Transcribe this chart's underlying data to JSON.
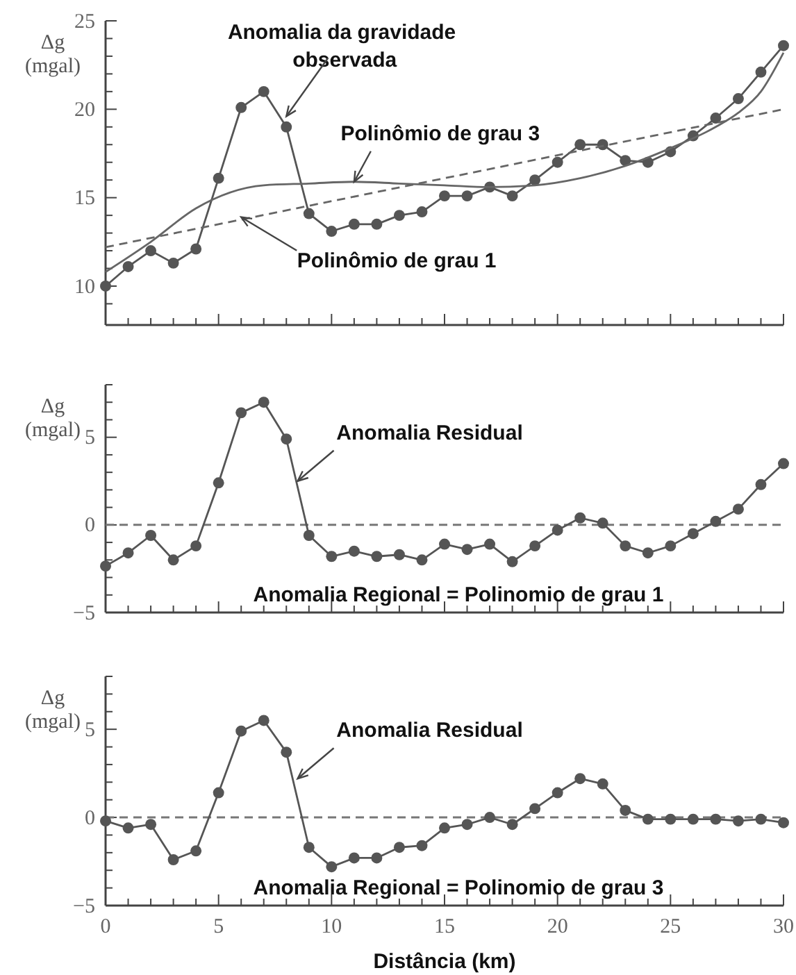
{
  "chart_data": [
    {
      "type": "line",
      "ylabel": "Δg (mgal)",
      "tick_labels": "y",
      "marker": "circle",
      "x": [
        0,
        1,
        2,
        3,
        4,
        5,
        6,
        7,
        8,
        9,
        10,
        11,
        12,
        13,
        14,
        15,
        16,
        17,
        18,
        19,
        20,
        21,
        22,
        23,
        24,
        25,
        26,
        27,
        28,
        29,
        30
      ],
      "xlim": [
        0,
        30
      ],
      "xticks": [
        0,
        {
          "value": 1,
          "label": null
        },
        {
          "value": 2,
          "label": null
        },
        {
          "value": 3,
          "label": null
        },
        {
          "value": 4,
          "label": null
        },
        5,
        {
          "value": 6,
          "label": null
        },
        {
          "value": 7,
          "label": null
        },
        {
          "value": 8,
          "label": null
        },
        {
          "value": 9,
          "label": null
        },
        10,
        {
          "value": 11,
          "label": null
        },
        {
          "value": 12,
          "label": null
        },
        {
          "value": 13,
          "label": null
        },
        {
          "value": 14,
          "label": null
        },
        15,
        {
          "value": 16,
          "label": null
        },
        {
          "value": 17,
          "label": null
        },
        {
          "value": 18,
          "label": null
        },
        {
          "value": 19,
          "label": null
        },
        20,
        {
          "value": 21,
          "label": null
        },
        {
          "value": 22,
          "label": null
        },
        {
          "value": 23,
          "label": null
        },
        {
          "value": 24,
          "label": null
        },
        25,
        {
          "value": 26,
          "label": null
        },
        {
          "value": 27,
          "label": null
        },
        {
          "value": 28,
          "label": null
        },
        {
          "value": 29,
          "label": null
        },
        30
      ],
      "ylim": [
        7.8,
        25
      ],
      "yticks": [
        {
          "value": 9,
          "label": null
        },
        10,
        {
          "value": 11,
          "label": null
        },
        {
          "value": 12,
          "label": null
        },
        {
          "value": 13,
          "label": null
        },
        {
          "value": 14,
          "label": null
        },
        15,
        {
          "value": 16,
          "label": null
        },
        {
          "value": 17,
          "label": null
        },
        {
          "value": 18,
          "label": null
        },
        {
          "value": 19,
          "label": null
        },
        20,
        {
          "value": 21,
          "label": null
        },
        {
          "value": 22,
          "label": null
        },
        {
          "value": 23,
          "label": null
        },
        {
          "value": 24,
          "label": null
        },
        25
      ],
      "series": [
        {
          "color": "#555555",
          "line_style": "solid",
          "values": [
            10.0,
            11.1,
            12.0,
            11.3,
            12.1,
            16.1,
            20.1,
            21.0,
            19.0,
            14.1,
            13.1,
            13.5,
            13.5,
            14.0,
            14.2,
            15.1,
            15.1,
            15.6,
            15.1,
            16.0,
            17.0,
            18.0,
            18.0,
            17.1,
            17.0,
            17.6,
            18.5,
            19.5,
            20.6,
            22.1,
            23.6
          ]
        },
        {
          "color": "#666666",
          "marker": "none",
          "line_style": "solid",
          "x": [
            0,
            2,
            4,
            7,
            9,
            11,
            13,
            15,
            17,
            19,
            21,
            23,
            25,
            27,
            28,
            29,
            30
          ],
          "values": [
            10.8,
            12.5,
            14.4,
            15.7,
            15.8,
            15.9,
            15.8,
            15.7,
            15.6,
            15.7,
            16.1,
            16.8,
            17.8,
            19.0,
            19.8,
            21.0,
            23.2
          ]
        },
        {
          "color": "#666666",
          "marker": "none",
          "line_style": "dashed",
          "x": [
            0,
            30
          ],
          "values": [
            12.2,
            20.0
          ]
        }
      ],
      "annotations": [
        {
          "text": "Anomalia da gravidade observada",
          "x": 8,
          "y": 19.6
        },
        {
          "text": "Polinômio de grau 3",
          "x": 11,
          "y": 15.9
        },
        {
          "text": "Polinômio de grau 1",
          "x": 6,
          "y": 13.9
        }
      ]
    },
    {
      "type": "line",
      "ylabel": "Δg (mgal)",
      "tick_labels": "y",
      "marker": "circle",
      "x": [
        0,
        1,
        2,
        3,
        4,
        5,
        6,
        7,
        8,
        9,
        10,
        11,
        12,
        13,
        14,
        15,
        16,
        17,
        18,
        19,
        20,
        21,
        22,
        23,
        24,
        25,
        26,
        27,
        28,
        29,
        30
      ],
      "xlim": [
        0,
        30
      ],
      "xticks": [
        0,
        {
          "value": 1,
          "label": null
        },
        {
          "value": 2,
          "label": null
        },
        {
          "value": 3,
          "label": null
        },
        {
          "value": 4,
          "label": null
        },
        5,
        {
          "value": 6,
          "label": null
        },
        {
          "value": 7,
          "label": null
        },
        {
          "value": 8,
          "label": null
        },
        {
          "value": 9,
          "label": null
        },
        10,
        {
          "value": 11,
          "label": null
        },
        {
          "value": 12,
          "label": null
        },
        {
          "value": 13,
          "label": null
        },
        {
          "value": 14,
          "label": null
        },
        15,
        {
          "value": 16,
          "label": null
        },
        {
          "value": 17,
          "label": null
        },
        {
          "value": 18,
          "label": null
        },
        {
          "value": 19,
          "label": null
        },
        20,
        {
          "value": 21,
          "label": null
        },
        {
          "value": 22,
          "label": null
        },
        {
          "value": 23,
          "label": null
        },
        {
          "value": 24,
          "label": null
        },
        25,
        {
          "value": 26,
          "label": null
        },
        {
          "value": 27,
          "label": null
        },
        {
          "value": 28,
          "label": null
        },
        {
          "value": 29,
          "label": null
        },
        30
      ],
      "ylim": [
        -5,
        8
      ],
      "yticks": [
        {
          "value": -5,
          "label": "−5"
        },
        {
          "value": -4,
          "label": null
        },
        {
          "value": -3,
          "label": null
        },
        {
          "value": -2,
          "label": null
        },
        {
          "value": -1,
          "label": null
        },
        0,
        {
          "value": 1,
          "label": null
        },
        {
          "value": 2,
          "label": null
        },
        {
          "value": 3,
          "label": null
        },
        {
          "value": 4,
          "label": null
        },
        5,
        {
          "value": 6,
          "label": null
        },
        {
          "value": 7,
          "label": null
        },
        {
          "value": 8,
          "label": null
        }
      ],
      "series": [
        {
          "color": "#555555",
          "values": [
            -2.35,
            -1.6,
            -0.6,
            -2.0,
            -1.2,
            2.4,
            6.4,
            7.0,
            4.9,
            -0.6,
            -1.8,
            -1.5,
            -1.8,
            -1.7,
            -2.0,
            -1.1,
            -1.4,
            -1.1,
            -2.1,
            -1.2,
            -0.3,
            0.4,
            0.1,
            -1.2,
            -1.6,
            -1.2,
            -0.5,
            0.2,
            0.9,
            2.3,
            3.5
          ]
        }
      ],
      "ref_lines": [
        {
          "axis": "y",
          "value": 0,
          "label": "Anomalia Regional = Polinomio de grau 1",
          "color": "#777777",
          "line_style": "dashed"
        }
      ],
      "annotations": [
        {
          "text": "Anomalia Residual",
          "x": 8.5,
          "y": 2.5
        }
      ]
    },
    {
      "type": "line",
      "ylabel": "Δg (mgal)",
      "xlabel": "Distância (km)",
      "marker": "circle",
      "x": [
        0,
        1,
        2,
        3,
        4,
        5,
        6,
        7,
        8,
        9,
        10,
        11,
        12,
        13,
        14,
        15,
        16,
        17,
        18,
        19,
        20,
        21,
        22,
        23,
        24,
        25,
        26,
        27,
        28,
        29,
        30
      ],
      "xlim": [
        0,
        30
      ],
      "xticks": [
        0,
        {
          "value": 1,
          "label": null
        },
        {
          "value": 2,
          "label": null
        },
        {
          "value": 3,
          "label": null
        },
        {
          "value": 4,
          "label": null
        },
        5,
        {
          "value": 6,
          "label": null
        },
        {
          "value": 7,
          "label": null
        },
        {
          "value": 8,
          "label": null
        },
        {
          "value": 9,
          "label": null
        },
        10,
        {
          "value": 11,
          "label": null
        },
        {
          "value": 12,
          "label": null
        },
        {
          "value": 13,
          "label": null
        },
        {
          "value": 14,
          "label": null
        },
        15,
        {
          "value": 16,
          "label": null
        },
        {
          "value": 17,
          "label": null
        },
        {
          "value": 18,
          "label": null
        },
        {
          "value": 19,
          "label": null
        },
        20,
        {
          "value": 21,
          "label": null
        },
        {
          "value": 22,
          "label": null
        },
        {
          "value": 23,
          "label": null
        },
        {
          "value": 24,
          "label": null
        },
        25,
        {
          "value": 26,
          "label": null
        },
        {
          "value": 27,
          "label": null
        },
        {
          "value": 28,
          "label": null
        },
        {
          "value": 29,
          "label": null
        },
        30
      ],
      "ylim": [
        -5,
        8
      ],
      "yticks": [
        {
          "value": -5,
          "label": "−5"
        },
        {
          "value": -4,
          "label": null
        },
        {
          "value": -3,
          "label": null
        },
        {
          "value": -2,
          "label": null
        },
        {
          "value": -1,
          "label": null
        },
        0,
        {
          "value": 1,
          "label": null
        },
        {
          "value": 2,
          "label": null
        },
        {
          "value": 3,
          "label": null
        },
        {
          "value": 4,
          "label": null
        },
        5,
        {
          "value": 6,
          "label": null
        },
        {
          "value": 7,
          "label": null
        },
        {
          "value": 8,
          "label": null
        }
      ],
      "series": [
        {
          "color": "#555555",
          "values": [
            -0.2,
            -0.6,
            -0.4,
            -2.4,
            -1.9,
            1.4,
            4.9,
            5.5,
            3.7,
            -1.7,
            -2.8,
            -2.3,
            -2.3,
            -1.7,
            -1.6,
            -0.6,
            -0.4,
            0.0,
            -0.4,
            0.5,
            1.4,
            2.2,
            1.9,
            0.4,
            -0.1,
            -0.1,
            -0.1,
            -0.1,
            -0.2,
            -0.1,
            -0.3
          ]
        }
      ],
      "ref_lines": [
        {
          "axis": "y",
          "value": 0,
          "label": "Anomalia Regional = Polinomio de grau 3",
          "color": "#777777",
          "line_style": "dashed"
        }
      ],
      "annotations": [
        {
          "text": "Anomalia Residual",
          "x": 8.5,
          "y": 2.2
        }
      ]
    }
  ]
}
